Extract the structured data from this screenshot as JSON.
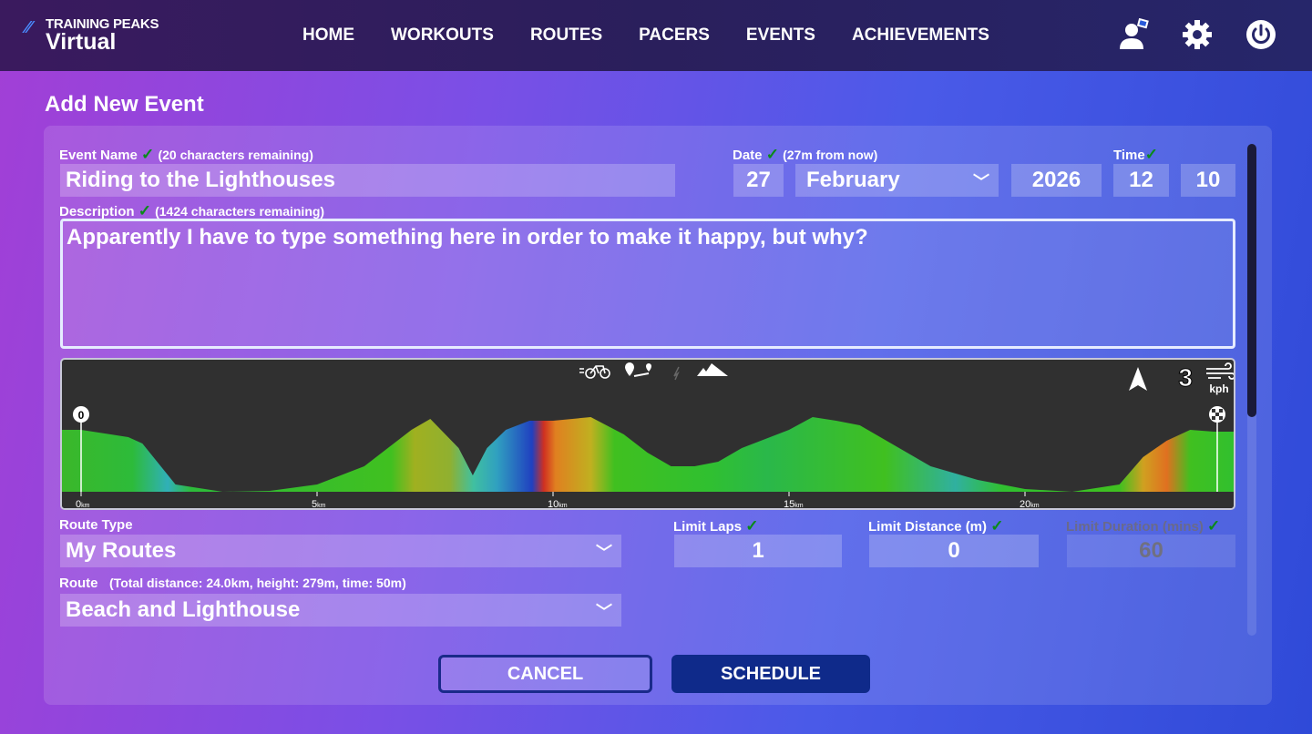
{
  "header": {
    "logo_top": "TRAINING PEAKS",
    "logo_bottom": "Virtual",
    "nav": [
      "HOME",
      "WORKOUTS",
      "ROUTES",
      "PACERS",
      "EVENTS",
      "ACHIEVEMENTS"
    ]
  },
  "page_title": "Add New Event",
  "event_name": {
    "label": "Event Name",
    "note": "(20 characters remaining)",
    "value": "Riding to the Lighthouses"
  },
  "date": {
    "label": "Date",
    "note": "(27m from now)",
    "day": "27",
    "month": "February",
    "year": "2026"
  },
  "time": {
    "label": "Time",
    "hour": "12",
    "minute": "10"
  },
  "description": {
    "label": "Description",
    "note": "(1424 characters remaining)",
    "value": "Apparently I have to type something here in order to make it happy, but why?"
  },
  "profile": {
    "start_marker": "0",
    "wind_speed": "3",
    "wind_unit": "kph",
    "km_ticks": [
      "0",
      "5",
      "10",
      "15",
      "20"
    ],
    "km_unit": "km",
    "icons": [
      "bike-icon",
      "route-pins-icon",
      "lightning-icon",
      "mountains-icon",
      "north-arrow-icon",
      "wind-icon",
      "finish-flag-icon"
    ]
  },
  "route_type": {
    "label": "Route Type",
    "value": "My Routes"
  },
  "limit_laps": {
    "label": "Limit Laps",
    "value": "1"
  },
  "limit_distance": {
    "label": "Limit Distance (m)",
    "value": "0"
  },
  "limit_duration": {
    "label": "Limit Duration (mins)",
    "value": "60"
  },
  "route": {
    "label": "Route",
    "note": "(Total distance: 24.0km, height: 279m, time: 50m)",
    "value": "Beach and Lighthouse"
  },
  "buttons": {
    "cancel": "CANCEL",
    "schedule": "SCHEDULE"
  },
  "colors": {
    "check": "#0a8a1a",
    "schedule": "#0f2a8a",
    "header": "#2a1f5c"
  }
}
